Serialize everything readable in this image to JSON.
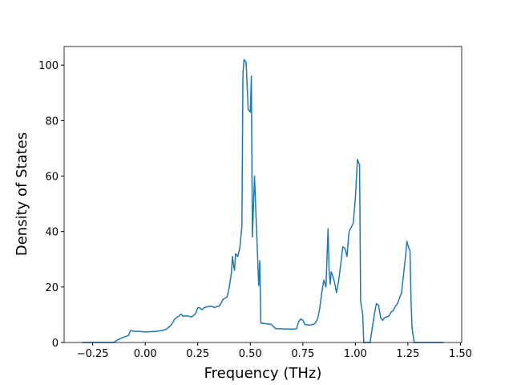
{
  "chart_data": {
    "type": "line",
    "xlabel": "Frequency (THz)",
    "ylabel": "Density of States",
    "xlim": [
      -0.386,
      1.506
    ],
    "ylim": [
      0,
      106.7
    ],
    "xticks": [
      {
        "value": -0.25,
        "label": "−0.25"
      },
      {
        "value": 0,
        "label": "0.00"
      },
      0.25,
      {
        "value": 0.5,
        "label": "0.50"
      },
      {
        "value": 0.75,
        "label": "0.75"
      },
      {
        "value": 1.0,
        "label": "1.00"
      },
      {
        "value": 1.25,
        "label": "1.25"
      },
      {
        "value": 1.5,
        "label": "1.50"
      }
    ],
    "yticks": [
      0,
      20,
      40,
      60,
      80,
      100
    ],
    "color": "#1f77b4",
    "x": [
      -0.3,
      -0.15,
      -0.13,
      -0.1,
      -0.08,
      -0.07,
      -0.05,
      -0.03,
      0,
      0.05,
      0.08,
      0.1,
      0.12,
      0.13,
      0.14,
      0.16,
      0.17,
      0.18,
      0.2,
      0.22,
      0.23,
      0.24,
      0.25,
      0.26,
      0.27,
      0.28,
      0.3,
      0.32,
      0.33,
      0.34,
      0.35,
      0.36,
      0.37,
      0.38,
      0.39,
      0.4,
      0.41,
      0.415,
      0.42,
      0.425,
      0.43,
      0.44,
      0.45,
      0.46,
      0.465,
      0.47,
      0.48,
      0.49,
      0.5,
      0.505,
      0.51,
      0.52,
      0.53,
      0.54,
      0.545,
      0.55,
      0.6,
      0.62,
      0.7,
      0.72,
      0.73,
      0.74,
      0.75,
      0.76,
      0.78,
      0.8,
      0.81,
      0.82,
      0.83,
      0.84,
      0.85,
      0.86,
      0.87,
      0.875,
      0.88,
      0.885,
      0.89,
      0.9,
      0.91,
      0.92,
      0.93,
      0.94,
      0.95,
      0.96,
      0.97,
      0.99,
      1.0,
      1.01,
      1.02,
      1.025,
      1.035,
      1.04,
      1.07,
      1.08,
      1.09,
      1.1,
      1.11,
      1.12,
      1.13,
      1.14,
      1.16,
      1.17,
      1.18,
      1.19,
      1.2,
      1.21,
      1.22,
      1.23,
      1.24,
      1.245,
      1.25,
      1.26,
      1.265,
      1.27,
      1.28,
      1.42
    ],
    "values": [
      0,
      0,
      1,
      2,
      2.5,
      4.3,
      4,
      4,
      3.8,
      4,
      4.3,
      4.8,
      6,
      7,
      8.5,
      9.5,
      10.2,
      9.5,
      9.6,
      9.2,
      9.7,
      10.5,
      12.5,
      12.5,
      11.8,
      12.5,
      13,
      13,
      12.5,
      13,
      13,
      14,
      15.5,
      16,
      16.5,
      20,
      25,
      31,
      28,
      26,
      32,
      31,
      34,
      42,
      97,
      102,
      101,
      84,
      83,
      96,
      38,
      60,
      40,
      20.5,
      29.5,
      7,
      6.5,
      5,
      4.8,
      5,
      7.5,
      8.5,
      8,
      6.5,
      6.3,
      6.5,
      7,
      8.5,
      12,
      18,
      22.5,
      20,
      41,
      26,
      21,
      25.5,
      24.5,
      22,
      18,
      22,
      28,
      34.5,
      34,
      31,
      40,
      43,
      52,
      66,
      64,
      15,
      10,
      0,
      0,
      5,
      10,
      14,
      13.5,
      9,
      8,
      9,
      9.5,
      11,
      11.5,
      13,
      14,
      16,
      18,
      25,
      32,
      36.5,
      35,
      33,
      15,
      5,
      0,
      0
    ]
  }
}
